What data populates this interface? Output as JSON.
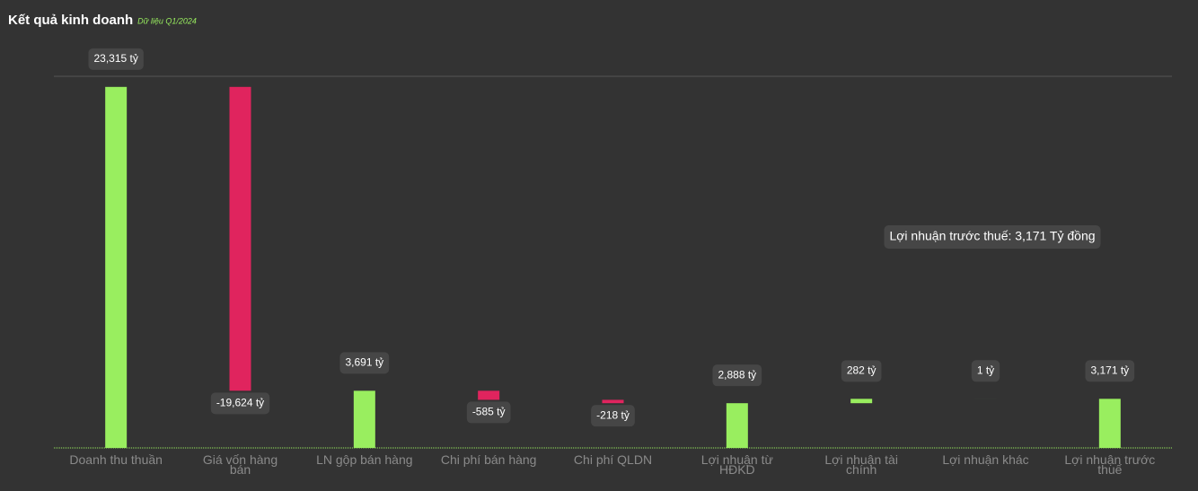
{
  "chart_data": {
    "type": "waterfall",
    "title": "Kết quả kinh doanh",
    "subtitle": "Dữ liệu Q1/2024",
    "categories": [
      "Doanh thu thuần",
      "Giá vốn hàng bán",
      "LN gộp bán hàng",
      "Chi phí bán hàng",
      "Chi phí QLDN",
      "Lợi nhuận từ HĐKD",
      "Lợi nhuận tài chính",
      "Lợi nhuận khác",
      "Lợi nhuận trước thuế"
    ],
    "values": [
      23315,
      -19624,
      3691,
      -585,
      -218,
      2888,
      282,
      1,
      3171
    ],
    "value_labels": [
      "23,315 tỷ",
      "-19,624 tỷ",
      "3,691 tỷ",
      "-585 tỷ",
      "-218 tỷ",
      "2,888 tỷ",
      "282 tỷ",
      "1 tỷ",
      "3,171 tỷ"
    ],
    "measure": [
      "absolute",
      "relative",
      "absolute",
      "relative",
      "relative",
      "absolute",
      "relative",
      "relative",
      "absolute"
    ],
    "positive_color": "#99ee5f",
    "negative_color": "#e0245e",
    "ylim": [
      0,
      24000
    ],
    "annotation": "Lợi nhuận trước thuế: 3,171 Tỷ đồng"
  }
}
